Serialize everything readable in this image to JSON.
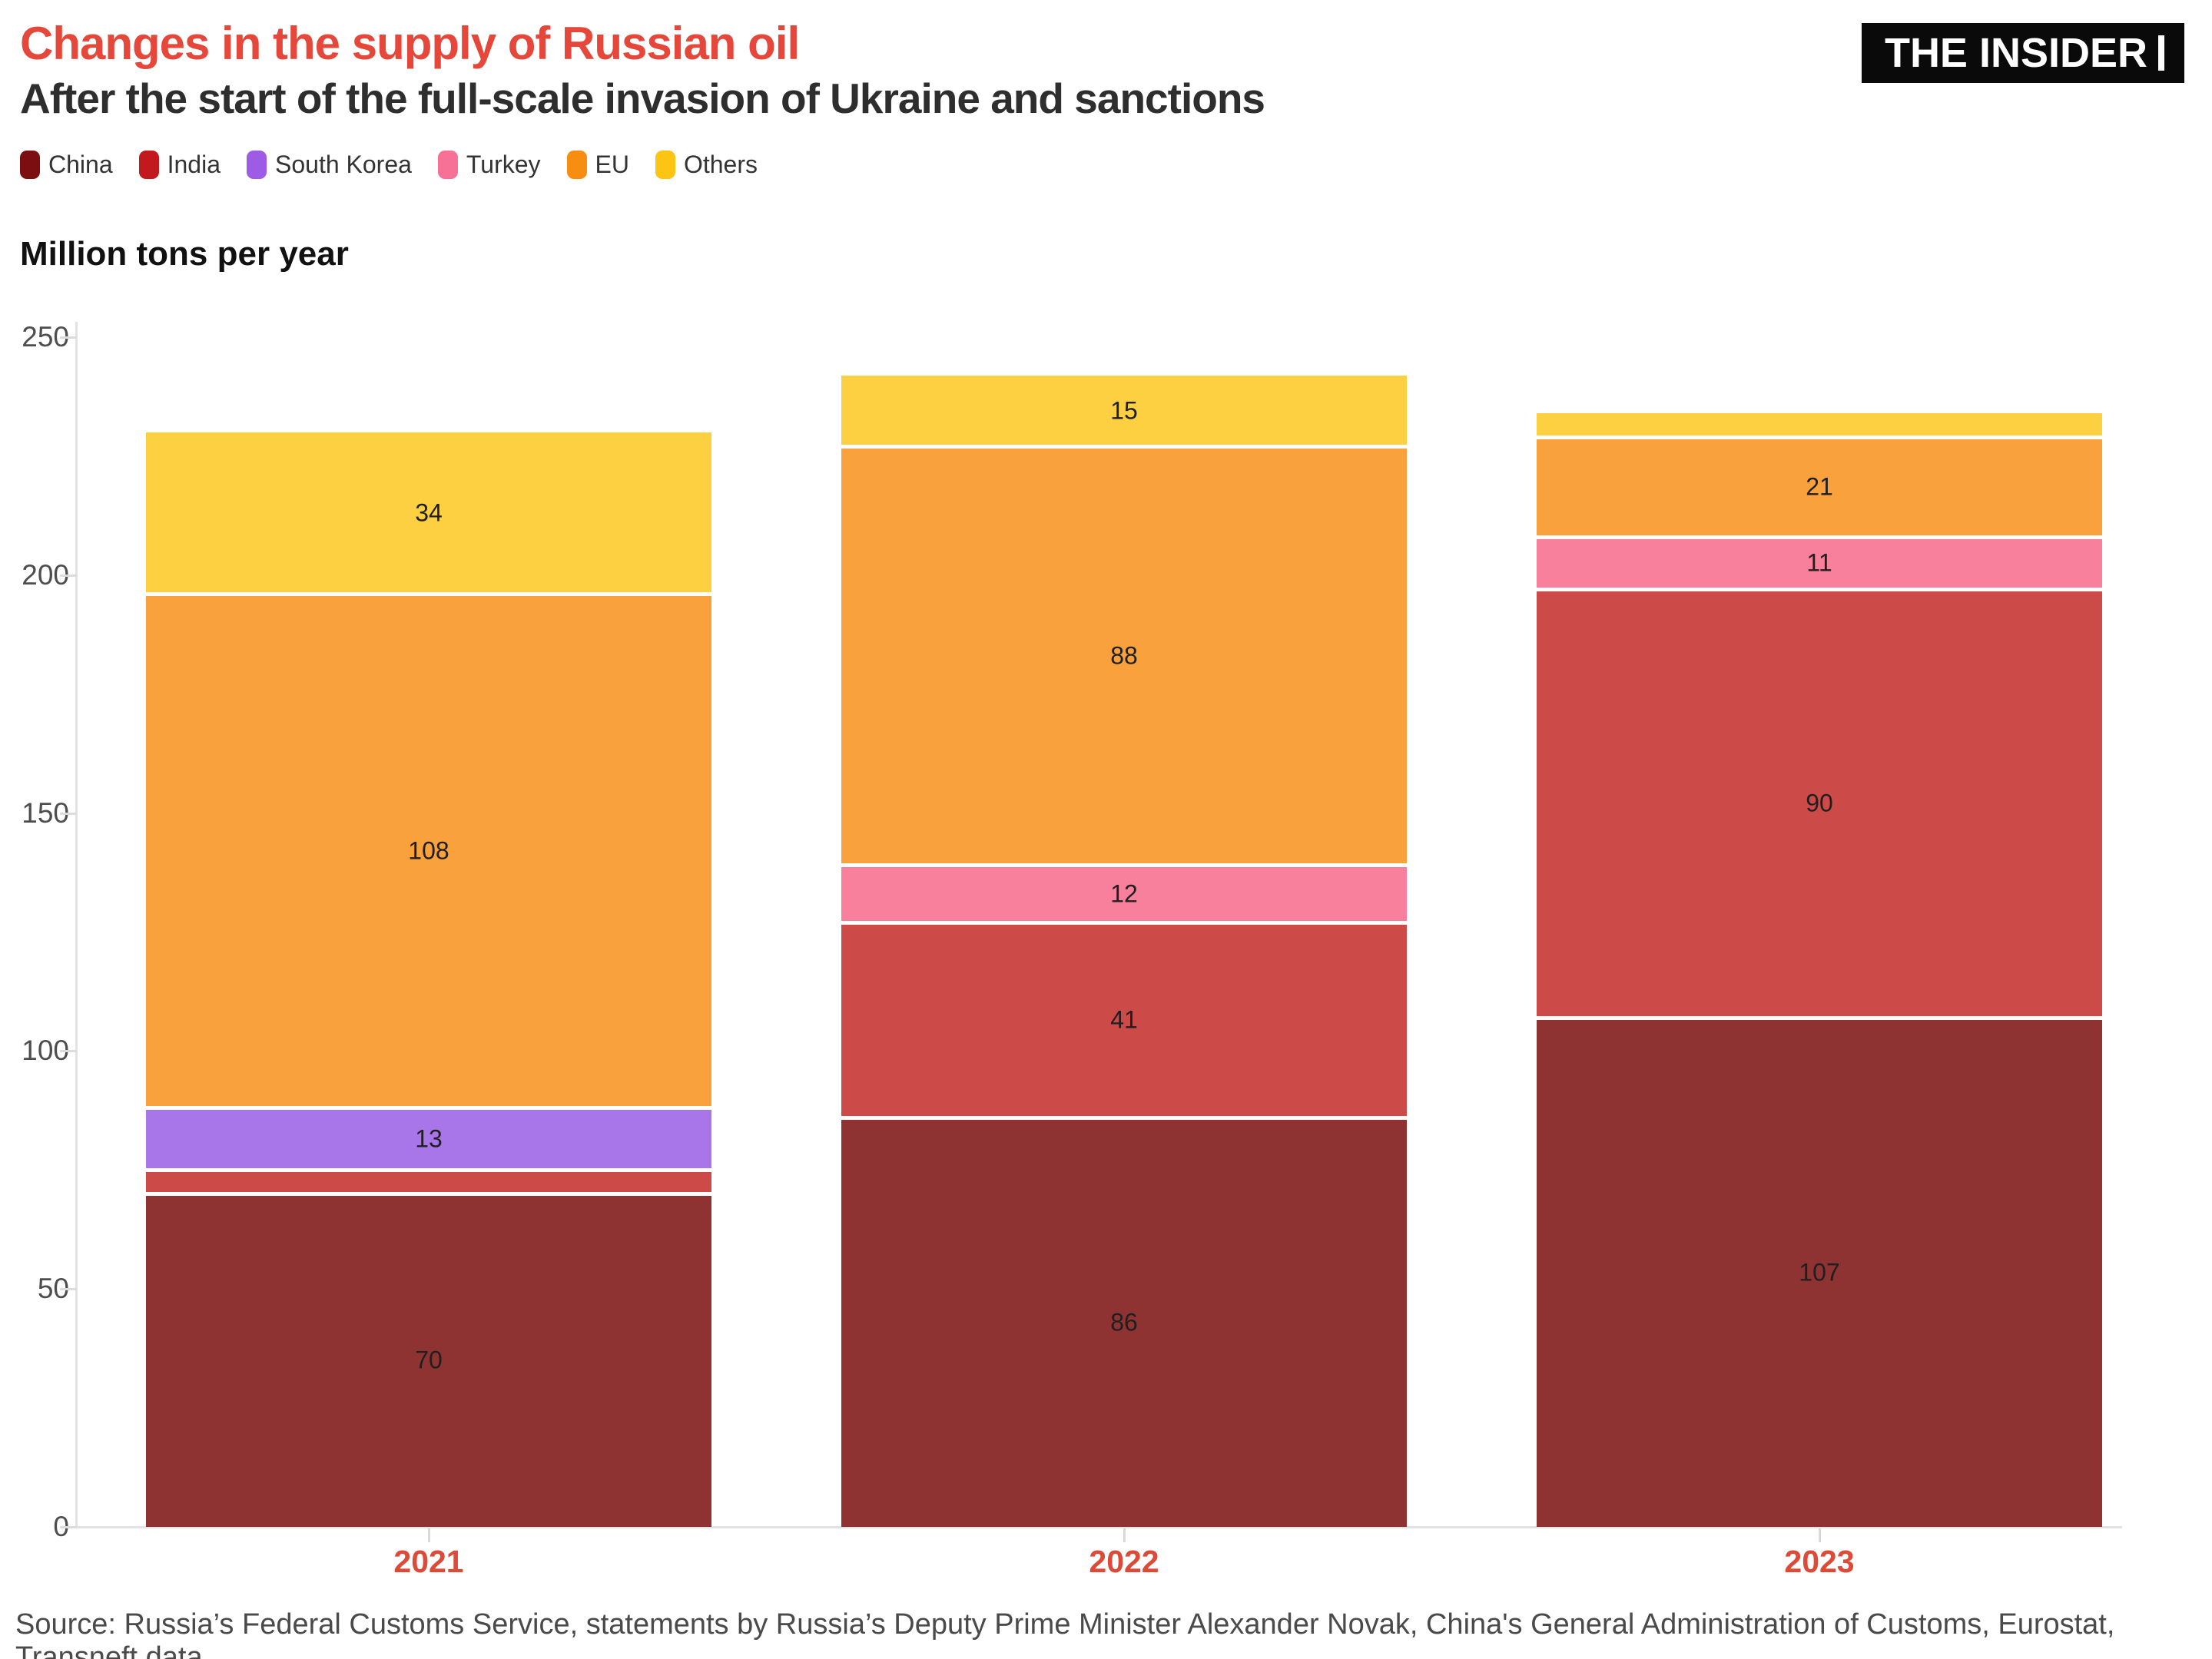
{
  "header": {
    "title": "Changes in the supply of Russian oil",
    "subtitle": "After the start of the full-scale invasion of Ukraine and sanctions",
    "logo": "THE INSIDER"
  },
  "colors": {
    "title": "#e5483a",
    "subtitle": "#2e2e2e",
    "year_label": "#dc4a38",
    "axis_line": "#e2e2e2",
    "tick_text": "#4d4d4d",
    "value_label": "#1f1f1f",
    "logo_bg": "#0a0a0a",
    "logo_text": "#ffffff",
    "source_text": "#4a4a4a"
  },
  "axis": {
    "unit_label": "Million tons per year",
    "y_ticks": [
      0,
      50,
      100,
      150,
      200,
      250
    ]
  },
  "chart_data": {
    "type": "bar",
    "subtype": "stacked-vertical",
    "title": "Changes in the supply of Russian oil",
    "subtitle": "After the start of the full-scale invasion of Ukraine and sanctions",
    "ylabel": "Million tons per year",
    "ylim": [
      0,
      250
    ],
    "grid": false,
    "legend_position": "top",
    "categories": [
      "2021",
      "2022",
      "2023"
    ],
    "series": [
      {
        "name": "China",
        "legend_color": "#7c0e12",
        "bar_color": "#8e3332",
        "values": [
          70,
          86,
          107
        ],
        "labels": [
          "70",
          "86",
          "107"
        ]
      },
      {
        "name": "India",
        "legend_color": "#c2191f",
        "bar_color": "#cc4b49",
        "values": [
          5,
          41,
          90
        ],
        "labels": [
          "",
          "41",
          "90"
        ]
      },
      {
        "name": "South Korea",
        "legend_color": "#9e5ce6",
        "bar_color": "#a876e8",
        "values": [
          13,
          0,
          0
        ],
        "labels": [
          "13",
          "",
          ""
        ]
      },
      {
        "name": "Turkey",
        "legend_color": "#f77096",
        "bar_color": "#f9809d",
        "values": [
          0,
          12,
          11
        ],
        "labels": [
          "",
          "12",
          "11"
        ]
      },
      {
        "name": "EU",
        "legend_color": "#f78e11",
        "bar_color": "#f9a13c",
        "values": [
          108,
          88,
          21
        ],
        "labels": [
          "108",
          "88",
          "21"
        ]
      },
      {
        "name": "Others",
        "legend_color": "#fcc513",
        "bar_color": "#fdd041",
        "values": [
          34,
          15,
          5
        ],
        "labels": [
          "34",
          "15",
          ""
        ]
      }
    ],
    "totals": [
      230,
      242,
      234
    ]
  },
  "source": "Source: Russia’s Federal Customs Service, statements by Russia’s Deputy Prime Minister Alexander Novak, China's General Administration of Customs, Eurostat, Transneft data"
}
